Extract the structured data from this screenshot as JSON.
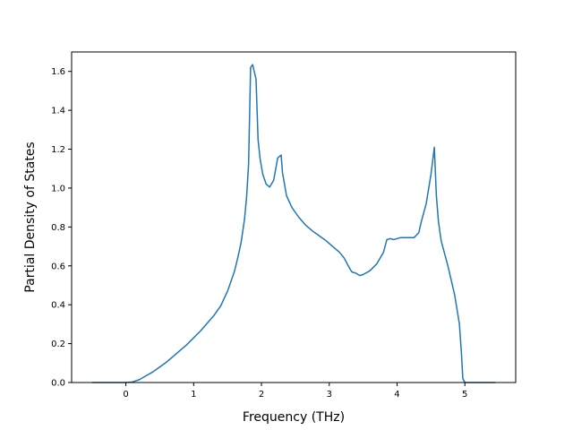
{
  "chart_data": {
    "type": "line",
    "title": "",
    "xlabel": "Frequency (THz)",
    "ylabel": "Partial Density of States",
    "xlim": [
      -0.8,
      5.75
    ],
    "ylim": [
      0.0,
      1.7
    ],
    "xticks": [
      0,
      1,
      2,
      3,
      4,
      5
    ],
    "xtick_labels": [
      "0",
      "1",
      "2",
      "3",
      "4",
      "5"
    ],
    "yticks": [
      0.0,
      0.2,
      0.4,
      0.6,
      0.8,
      1.0,
      1.2,
      1.4,
      1.6
    ],
    "ytick_labels": [
      "0.0",
      "0.2",
      "0.4",
      "0.6",
      "0.8",
      "1.0",
      "1.2",
      "1.4",
      "1.6"
    ],
    "grid": false,
    "legend": "none",
    "line_color": "#1f77b4",
    "series": [
      {
        "x": [
          -0.5,
          -0.2,
          0.0,
          0.1,
          0.2,
          0.3,
          0.4,
          0.5,
          0.6,
          0.7,
          0.8,
          0.9,
          1.0,
          1.1,
          1.2,
          1.3,
          1.4,
          1.5,
          1.6,
          1.65,
          1.7,
          1.75,
          1.78,
          1.81,
          1.84,
          1.87,
          1.92,
          1.95,
          1.98,
          2.02,
          2.07,
          2.12,
          2.18,
          2.24,
          2.29,
          2.31,
          2.34,
          2.37,
          2.45,
          2.55,
          2.65,
          2.75,
          2.85,
          2.95,
          3.05,
          3.15,
          3.22,
          3.28,
          3.33,
          3.36,
          3.38,
          3.45,
          3.5,
          3.6,
          3.7,
          3.8,
          3.85,
          3.9,
          3.95,
          4.05,
          4.15,
          4.25,
          4.32,
          4.36,
          4.43,
          4.5,
          4.55,
          4.58,
          4.61,
          4.65,
          4.75,
          4.85,
          4.92,
          4.95,
          4.97,
          5.0,
          5.2,
          5.45
        ],
        "y": [
          0.0,
          0.0,
          0.0,
          0.003,
          0.015,
          0.035,
          0.055,
          0.08,
          0.105,
          0.135,
          0.165,
          0.195,
          0.23,
          0.265,
          0.305,
          0.345,
          0.395,
          0.47,
          0.57,
          0.64,
          0.72,
          0.84,
          0.95,
          1.12,
          1.62,
          1.635,
          1.56,
          1.25,
          1.15,
          1.07,
          1.02,
          1.005,
          1.04,
          1.155,
          1.17,
          1.08,
          1.02,
          0.96,
          0.9,
          0.85,
          0.81,
          0.78,
          0.755,
          0.73,
          0.7,
          0.67,
          0.64,
          0.6,
          0.57,
          0.565,
          0.565,
          0.55,
          0.555,
          0.575,
          0.61,
          0.67,
          0.735,
          0.74,
          0.735,
          0.745,
          0.745,
          0.745,
          0.77,
          0.83,
          0.92,
          1.07,
          1.21,
          0.96,
          0.83,
          0.73,
          0.6,
          0.45,
          0.3,
          0.15,
          0.02,
          0.0,
          0.0,
          0.0
        ]
      }
    ]
  }
}
